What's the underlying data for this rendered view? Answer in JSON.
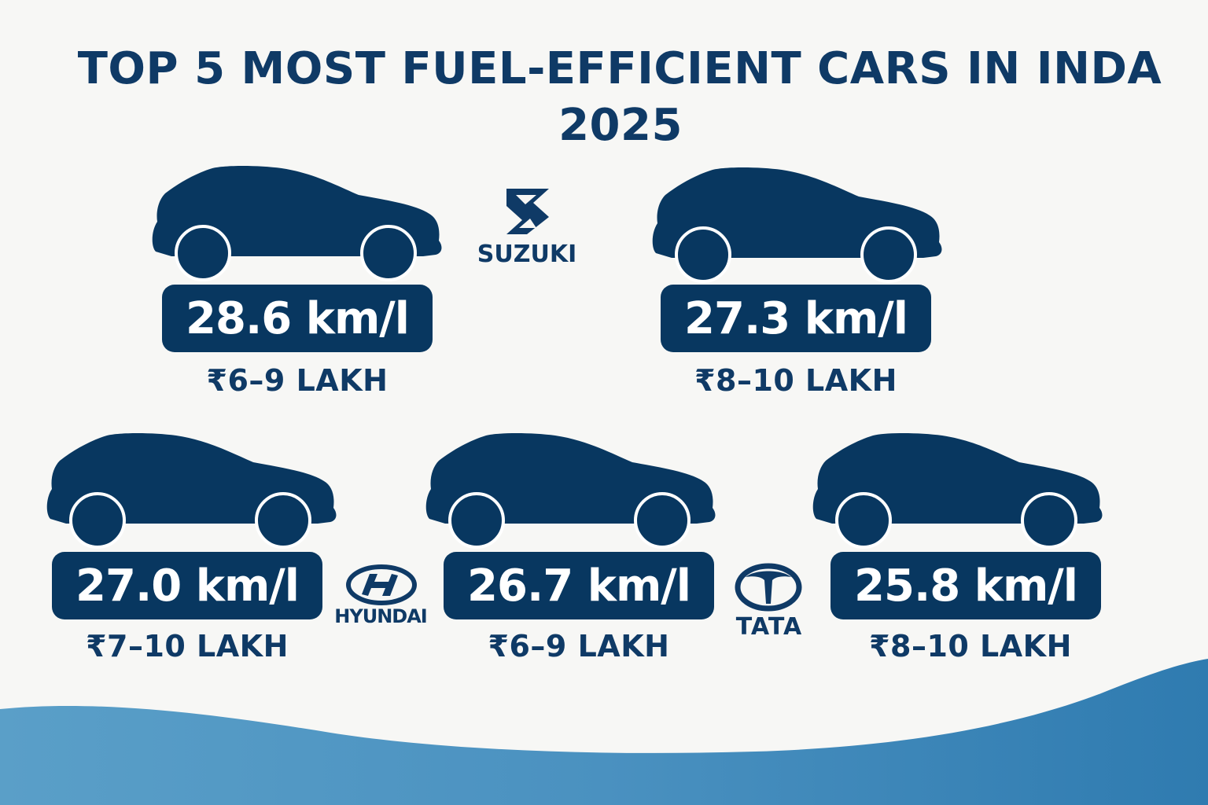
{
  "title": {
    "line1": "TOP 5 MOST FUEL-EFFICIENT CARS IN INDA",
    "line2": "2025"
  },
  "cars": [
    {
      "mileage": "28.6 km/l",
      "price": "₹6–9 LAKH"
    },
    {
      "mileage": "27.3 km/l",
      "price": "₹8–10 LAKH"
    },
    {
      "mileage": "27.0 km/l",
      "price": "₹7–10 LAKH"
    },
    {
      "mileage": "26.7 km/l",
      "price": "₹6–9 LAKH"
    },
    {
      "mileage": "25.8 km/l",
      "price": "₹8–10 LAKH"
    }
  ],
  "brands": {
    "suzuki": "SUZUKI",
    "hyundai": "HYUNDAI",
    "tata": "TATA"
  },
  "colors": {
    "primary": "#083760",
    "title": "#0f3a66",
    "wave_light": "#5a9fc8",
    "wave_dark": "#2f7bb0",
    "background": "#f7f7f5"
  },
  "icons": [
    "car-silhouette-icon",
    "suzuki-logo-icon",
    "hyundai-logo-icon",
    "tata-logo-icon"
  ]
}
